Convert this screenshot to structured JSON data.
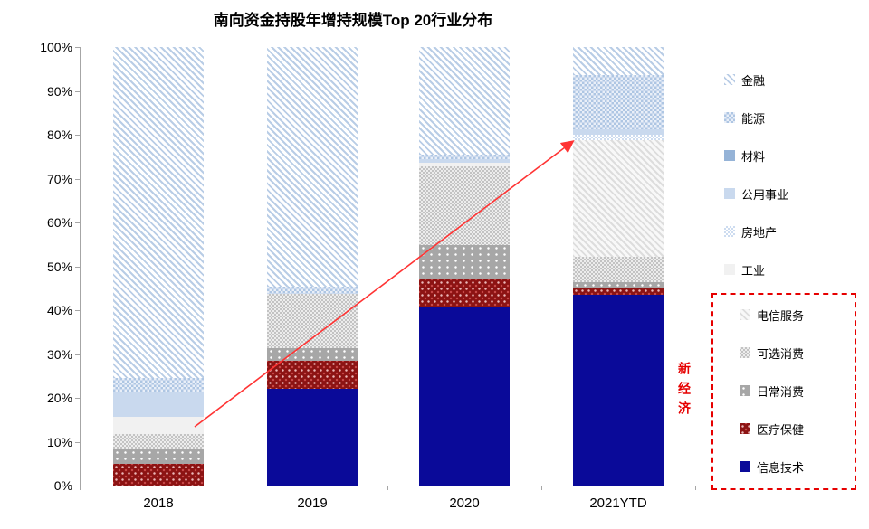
{
  "title": "南向资金持股年增持规模Top 20行业分布",
  "chart_data": {
    "type": "bar",
    "subtype": "stacked-100-percent",
    "title": "南向资金持股年增持规模Top 20行业分布",
    "categories": [
      "2018",
      "2019",
      "2020",
      "2021YTD"
    ],
    "y_ticks": [
      "100%",
      "90%",
      "80%",
      "70%",
      "60%",
      "50%",
      "40%",
      "30%",
      "20%",
      "10%",
      "0%"
    ],
    "ylim": [
      0,
      100
    ],
    "unit": "%",
    "grid": false,
    "legend_position": "right",
    "series": [
      {
        "name": "信息技术",
        "pattern": "tech",
        "color": "#0a0a99",
        "values": [
          0.0,
          22.1,
          40.9,
          43.6
        ]
      },
      {
        "name": "医疗保健",
        "pattern": "health",
        "color": "#8c1313",
        "values": [
          5.0,
          6.4,
          6.1,
          1.5
        ]
      },
      {
        "name": "日常消费",
        "pattern": "staples",
        "color": "#a7a7a7",
        "values": [
          3.3,
          2.9,
          7.9,
          1.2
        ]
      },
      {
        "name": "可选消费",
        "pattern": "disc",
        "color": "#c3c3c3",
        "values": [
          3.5,
          12.4,
          17.9,
          5.8
        ]
      },
      {
        "name": "电信服务",
        "pattern": "tel",
        "color": "#dddddd",
        "values": [
          0.0,
          0.0,
          0.0,
          26.7
        ]
      },
      {
        "name": "工业",
        "pattern": "ind",
        "color": "#f1f1f1",
        "values": [
          3.8,
          0.0,
          0.8,
          0.0
        ]
      },
      {
        "name": "房地产",
        "pattern": "re",
        "color": "#cddcf0",
        "values": [
          0.0,
          0.0,
          0.0,
          1.3
        ]
      },
      {
        "name": "公用事业",
        "pattern": "util",
        "color": "#c9d9ee",
        "values": [
          5.9,
          0.0,
          0.9,
          1.2
        ]
      },
      {
        "name": "材料",
        "pattern": "mat",
        "color": "#95b3d7",
        "values": [
          0.0,
          0.0,
          0.0,
          0.0
        ]
      },
      {
        "name": "能源",
        "pattern": "energy",
        "color": "#aec6e3",
        "values": [
          3.1,
          1.6,
          1.0,
          12.4
        ]
      },
      {
        "name": "金融",
        "pattern": "fin",
        "color": "#b9cde6",
        "values": [
          75.4,
          54.6,
          24.5,
          6.3
        ]
      }
    ],
    "annotation": {
      "type": "trend-arrow",
      "from_category": "2018",
      "to_category": "2021YTD",
      "meaning": "新经济占比上升",
      "color": "#ff3333"
    }
  },
  "legend": {
    "top_group": [
      "金融",
      "能源",
      "材料",
      "公用事业",
      "房地产",
      "工业"
    ],
    "boxed_group": [
      "电信服务",
      "可选消费",
      "日常消费",
      "医疗保健",
      "信息技术"
    ],
    "boxed_group_label": "新经济",
    "box_color": "#e60000"
  },
  "colors": {
    "accent_red": "#e60000",
    "arrow_red": "#ff3333",
    "tech_navy": "#0a0a99",
    "health_dark_red": "#8c1313",
    "axis_gray": "#a6a6a6"
  }
}
